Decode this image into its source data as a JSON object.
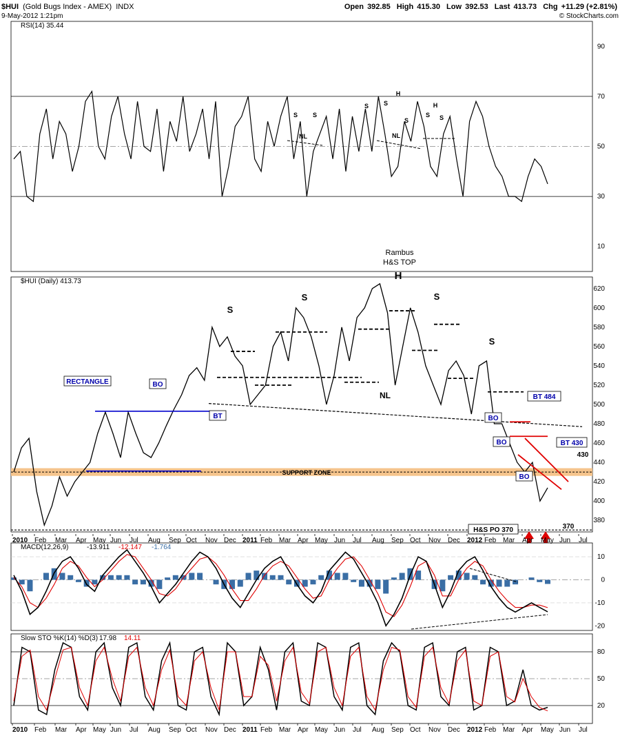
{
  "header": {
    "symbol": "$HUI",
    "name": "(Gold Bugs Index - AMEX)",
    "exchange": "INDX",
    "date": "9-May-2012 1:21pm",
    "copyright": "© StockCharts.com",
    "open_label": "Open",
    "open": "392.85",
    "high_label": "High",
    "high": "415.30",
    "low_label": "Low",
    "low": "392.53",
    "last_label": "Last",
    "last": "413.73",
    "chg_label": "Chg",
    "chg": "+11.29 (+2.81%)"
  },
  "colors": {
    "price": "#000000",
    "macd": "#000000",
    "signal": "#e00000",
    "hist": "#3a6ea5",
    "blue_line": "#0000cc",
    "support": "#f5c48c",
    "red_line": "#e00000"
  },
  "x_axis": {
    "labels": [
      "2010",
      "Feb",
      "Mar",
      "Apr",
      "May",
      "Jun",
      "Jul",
      "Aug",
      "Sep",
      "Oct",
      "Nov",
      "Dec",
      "2011",
      "Feb",
      "Mar",
      "Apr",
      "May",
      "Jun",
      "Jul",
      "Aug",
      "Sep",
      "Oct",
      "Nov",
      "Dec",
      "2012",
      "Feb",
      "Mar",
      "Apr",
      "May",
      "Jun",
      "Jul"
    ],
    "bold": [
      "2010",
      "2011",
      "2012"
    ]
  },
  "chart_data": [
    {
      "type": "line",
      "title": "RSI(14) 35.44",
      "ylim": [
        0,
        100
      ],
      "yticks": [
        10,
        30,
        50,
        70,
        90
      ],
      "series": [
        {
          "values": [
            45,
            48,
            30,
            28,
            55,
            65,
            45,
            60,
            55,
            40,
            50,
            68,
            72,
            50,
            45,
            62,
            70,
            55,
            45,
            68,
            50,
            48,
            65,
            40,
            60,
            52,
            70,
            48,
            55,
            65,
            45,
            68,
            30,
            42,
            58,
            62,
            70,
            45,
            40,
            60,
            50,
            62,
            70,
            45,
            60,
            30,
            48,
            55,
            62,
            45,
            65,
            40,
            62,
            48,
            65,
            48,
            70,
            55,
            38,
            42,
            60,
            52,
            68,
            58,
            42,
            38,
            55,
            62,
            45,
            30,
            60,
            68,
            62,
            50,
            42,
            38,
            30,
            30,
            28,
            38,
            45,
            42,
            35
          ]
        }
      ],
      "annotations": [
        "S",
        "S",
        "NL",
        "S",
        "S",
        "NL",
        "H",
        "S",
        "S",
        "H",
        "S"
      ]
    },
    {
      "type": "line",
      "title": "$HUI (Daily) 413.73",
      "ylim": [
        368,
        632
      ],
      "yticks": [
        380,
        400,
        420,
        440,
        460,
        480,
        500,
        520,
        540,
        560,
        580,
        600,
        620
      ],
      "series": [
        {
          "values": [
            430,
            455,
            465,
            410,
            375,
            395,
            425,
            405,
            420,
            430,
            440,
            470,
            492,
            470,
            445,
            492,
            470,
            450,
            445,
            460,
            478,
            495,
            510,
            530,
            538,
            525,
            580,
            560,
            570,
            550,
            540,
            500,
            510,
            520,
            560,
            575,
            545,
            600,
            590,
            570,
            540,
            500,
            530,
            580,
            545,
            590,
            600,
            620,
            625,
            595,
            520,
            560,
            600,
            575,
            540,
            520,
            500,
            535,
            545,
            530,
            490,
            540,
            545,
            480,
            480,
            460,
            440,
            430,
            440,
            400,
            413.73
          ]
        }
      ],
      "annotations": [
        {
          "text": "RECTANGLE",
          "value": 492
        },
        {
          "text": "BO",
          "value": 492
        },
        {
          "text": "BT",
          "value": 492
        },
        {
          "text": "S"
        },
        {
          "text": "S"
        },
        {
          "text": "H"
        },
        {
          "text": "S"
        },
        {
          "text": "S"
        },
        {
          "text": "Rambus"
        },
        {
          "text": "H&S TOP"
        },
        {
          "text": "NL"
        },
        {
          "text": "SUPPORT ZONE",
          "value": 430
        },
        {
          "text": "BT 484",
          "value": 484
        },
        {
          "text": "BO",
          "value": 480
        },
        {
          "text": "BO",
          "value": 466
        },
        {
          "text": "BT 430",
          "value": 430
        },
        {
          "text": "430",
          "value": 430
        },
        {
          "text": "BO",
          "value": 420
        },
        {
          "text": "H&S PO 370",
          "value": 370
        },
        {
          "text": "370",
          "value": 370
        }
      ]
    },
    {
      "type": "line",
      "title": "MACD(12,26,9)",
      "legend": [
        "-13.911",
        "-12.147",
        "-1.764"
      ],
      "ylim": [
        -22,
        16
      ],
      "yticks": [
        -20,
        -10,
        0,
        10
      ],
      "series": [
        {
          "name": "MACD",
          "values": [
            2,
            -5,
            -15,
            -12,
            -5,
            3,
            8,
            10,
            5,
            -2,
            -5,
            2,
            6,
            10,
            13,
            8,
            3,
            -3,
            -10,
            -6,
            -2,
            3,
            8,
            12,
            10,
            5,
            -2,
            -8,
            -12,
            -6,
            0,
            5,
            8,
            10,
            4,
            -2,
            -7,
            -10,
            -5,
            4,
            8,
            12,
            9,
            3,
            -3,
            -10,
            -20,
            -15,
            -8,
            2,
            10,
            8,
            -2,
            -12,
            -5,
            4,
            8,
            10,
            4,
            -3,
            -8,
            -12,
            -14,
            -12,
            -10,
            -12,
            -13.9
          ]
        },
        {
          "name": "Signal",
          "values": [
            1,
            -3,
            -10,
            -12,
            -8,
            -2,
            5,
            8,
            6,
            1,
            -3,
            0,
            4,
            8,
            11,
            10,
            5,
            0,
            -6,
            -7,
            -4,
            1,
            5,
            9,
            10,
            7,
            2,
            -4,
            -9,
            -9,
            -4,
            2,
            6,
            8,
            6,
            1,
            -4,
            -8,
            -7,
            0,
            5,
            9,
            10,
            6,
            0,
            -6,
            -14,
            -16,
            -11,
            -3,
            6,
            8,
            2,
            -7,
            -7,
            0,
            5,
            8,
            6,
            0,
            -5,
            -9,
            -12,
            -12,
            -11,
            -11,
            -12.1
          ]
        }
      ],
      "hist": [
        1,
        -2,
        -5,
        0,
        3,
        5,
        3,
        2,
        -1,
        -3,
        -2,
        2,
        2,
        2,
        2,
        -2,
        -2,
        -3,
        -4,
        1,
        2,
        2,
        3,
        3,
        0,
        -2,
        -4,
        -4,
        -3,
        3,
        4,
        3,
        2,
        2,
        -2,
        -3,
        -3,
        -2,
        2,
        4,
        3,
        3,
        -1,
        -3,
        -3,
        -4,
        -6,
        1,
        3,
        5,
        4,
        0,
        -4,
        -5,
        2,
        4,
        3,
        2,
        -2,
        -3,
        -3,
        -3,
        -2,
        0,
        1,
        -1,
        -1.8
      ]
    },
    {
      "type": "line",
      "title": "Slow STO %K(14) %D(3)",
      "legend": [
        "17.98",
        "14.11"
      ],
      "ylim": [
        0,
        100
      ],
      "yticks": [
        20,
        50,
        80
      ],
      "series": [
        {
          "name": "%K",
          "values": [
            20,
            85,
            80,
            15,
            10,
            60,
            90,
            85,
            30,
            15,
            80,
            90,
            40,
            20,
            85,
            90,
            30,
            15,
            70,
            90,
            20,
            15,
            80,
            85,
            30,
            10,
            90,
            80,
            20,
            30,
            85,
            60,
            15,
            80,
            90,
            25,
            20,
            90,
            85,
            30,
            15,
            85,
            90,
            20,
            10,
            70,
            90,
            80,
            20,
            15,
            85,
            90,
            30,
            20,
            80,
            85,
            15,
            20,
            85,
            80,
            20,
            25,
            60,
            20,
            15,
            18
          ]
        },
        {
          "name": "%D",
          "values": [
            25,
            75,
            82,
            30,
            15,
            50,
            82,
            85,
            40,
            20,
            70,
            85,
            50,
            25,
            75,
            85,
            40,
            20,
            60,
            82,
            30,
            20,
            70,
            80,
            40,
            15,
            80,
            80,
            30,
            30,
            75,
            65,
            25,
            70,
            85,
            35,
            22,
            80,
            85,
            40,
            20,
            75,
            85,
            30,
            15,
            60,
            85,
            82,
            30,
            18,
            75,
            85,
            40,
            22,
            70,
            82,
            25,
            20,
            75,
            80,
            30,
            24,
            50,
            30,
            18,
            14
          ]
        }
      ]
    }
  ]
}
